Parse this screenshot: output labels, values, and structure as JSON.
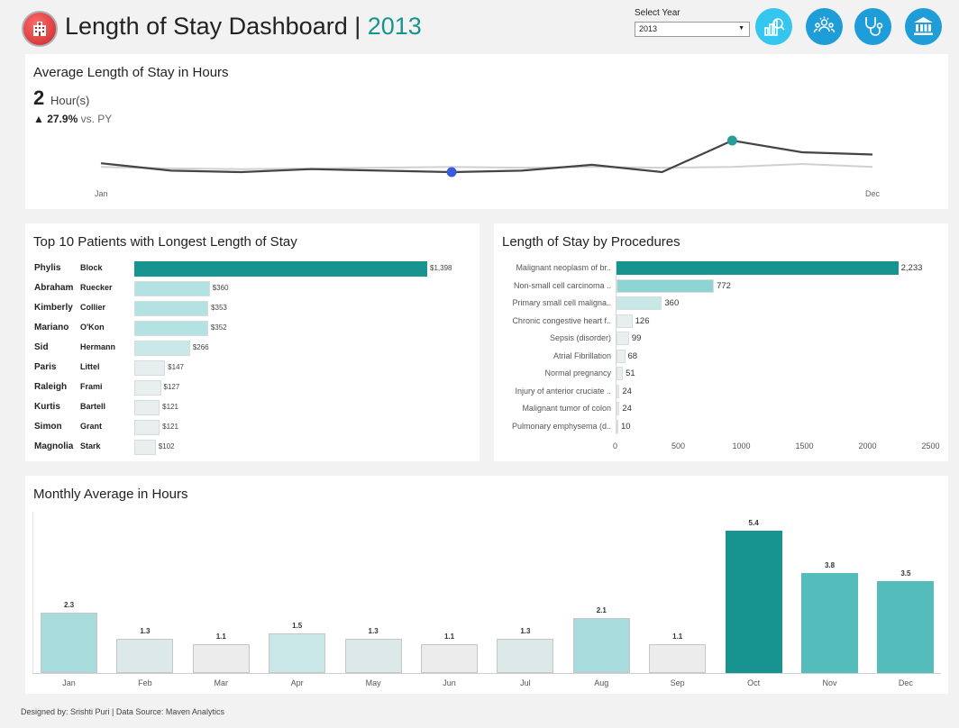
{
  "header": {
    "title": "Length of Stay Dashboard |",
    "year": "2013",
    "select_label": "Select Year",
    "select_value": "2013"
  },
  "nav_icons": [
    {
      "name": "analytics-icon",
      "color": "#35c6f0"
    },
    {
      "name": "patients-icon",
      "color": "#1e9dd8"
    },
    {
      "name": "stethoscope-icon",
      "color": "#1e9dd8"
    },
    {
      "name": "hospital-icon",
      "color": "#1e9dd8"
    }
  ],
  "kpi": {
    "title": "Average Length of Stay in Hours",
    "value": "2",
    "unit": "Hour(s)",
    "change": "▲ 27.9%",
    "change_suffix": "vs. PY",
    "axis_start": "Jan",
    "axis_end": "Dec"
  },
  "patients": {
    "title": "Top 10 Patients with Longest Length of Stay",
    "rows": [
      {
        "first": "Phylis",
        "last": "Block",
        "value": 1398,
        "label": "$1,398"
      },
      {
        "first": "Abraham",
        "last": "Ruecker",
        "value": 360,
        "label": "$360"
      },
      {
        "first": "Kimberly",
        "last": "Collier",
        "value": 353,
        "label": "$353"
      },
      {
        "first": "Mariano",
        "last": "O'Kon",
        "value": 352,
        "label": "$352"
      },
      {
        "first": "Sid",
        "last": "Hermann",
        "value": 266,
        "label": "$266"
      },
      {
        "first": "Paris",
        "last": "Littel",
        "value": 147,
        "label": "$147"
      },
      {
        "first": "Raleigh",
        "last": "Frami",
        "value": 127,
        "label": "$127"
      },
      {
        "first": "Kurtis",
        "last": "Bartell",
        "value": 121,
        "label": "$121"
      },
      {
        "first": "Simon",
        "last": "Grant",
        "value": 121,
        "label": "$121"
      },
      {
        "first": "Magnolia",
        "last": "Stark",
        "value": 102,
        "label": "$102"
      }
    ]
  },
  "procedures": {
    "title": "Length of Stay by Procedures",
    "rows": [
      {
        "label": "Malignant neoplasm of br..",
        "value": 2233,
        "text": "2,233"
      },
      {
        "label": "Non-small cell carcinoma ..",
        "value": 772,
        "text": "772"
      },
      {
        "label": "Primary small cell maligna..",
        "value": 360,
        "text": "360"
      },
      {
        "label": "Chronic congestive heart f..",
        "value": 126,
        "text": "126"
      },
      {
        "label": "Sepsis (disorder)",
        "value": 99,
        "text": "99"
      },
      {
        "label": "Atrial Fibrillation",
        "value": 68,
        "text": "68"
      },
      {
        "label": "Normal pregnancy",
        "value": 51,
        "text": "51"
      },
      {
        "label": "Injury of anterior cruciate ..",
        "value": 24,
        "text": "24"
      },
      {
        "label": "Malignant tumor of colon",
        "value": 24,
        "text": "24"
      },
      {
        "label": "Pulmonary emphysema (d..",
        "value": 10,
        "text": "10"
      }
    ],
    "ticks": [
      "0",
      "500",
      "1000",
      "1500",
      "2000",
      "2500"
    ],
    "xlim": [
      0,
      2500
    ]
  },
  "monthly": {
    "title": "Monthly Average in Hours"
  },
  "footer": "Designed by: Srishti Puri | Data Source: Maven Analytics",
  "chart_data": [
    {
      "type": "line",
      "title": "Average Length of Stay in Hours",
      "x": [
        "Jan",
        "Feb",
        "Mar",
        "Apr",
        "May",
        "Jun",
        "Jul",
        "Aug",
        "Sep",
        "Oct",
        "Nov",
        "Dec"
      ],
      "series": [
        {
          "values": [
            2.3,
            1.3,
            1.1,
            1.5,
            1.3,
            1.1,
            1.3,
            2.1,
            1.1,
            5.4,
            3.8,
            3.5
          ],
          "color": "#444444"
        },
        {
          "values": [
            1.8,
            1.6,
            1.5,
            1.6,
            1.7,
            1.8,
            1.7,
            1.8,
            1.7,
            1.8,
            2.2,
            1.8
          ],
          "color": "#d0d0d0"
        }
      ],
      "highlights": [
        {
          "x": "Jun",
          "color": "#3b5bdb"
        },
        {
          "x": "Oct",
          "color": "#2a9d9a"
        }
      ]
    },
    {
      "type": "bar",
      "title": "Top 10 Patients with Longest Length of Stay",
      "categories": [
        "Phylis Block",
        "Abraham Ruecker",
        "Kimberly Collier",
        "Mariano O'Kon",
        "Sid Hermann",
        "Paris Littel",
        "Raleigh Frami",
        "Kurtis Bartell",
        "Simon Grant",
        "Magnolia Stark"
      ],
      "values": [
        1398,
        360,
        353,
        352,
        266,
        147,
        127,
        121,
        121,
        102
      ]
    },
    {
      "type": "bar",
      "title": "Length of Stay by Procedures",
      "categories": [
        "Malignant neoplasm of br..",
        "Non-small cell carcinoma ..",
        "Primary small cell maligna..",
        "Chronic congestive heart f..",
        "Sepsis (disorder)",
        "Atrial Fibrillation",
        "Normal pregnancy",
        "Injury of anterior cruciate ..",
        "Malignant tumor of colon",
        "Pulmonary emphysema (d.."
      ],
      "values": [
        2233,
        772,
        360,
        126,
        99,
        68,
        51,
        24,
        24,
        10
      ],
      "xlim": [
        0,
        2500
      ]
    },
    {
      "type": "bar",
      "title": "Monthly Average in Hours",
      "categories": [
        "Jan",
        "Feb",
        "Mar",
        "Apr",
        "May",
        "Jun",
        "Jul",
        "Aug",
        "Sep",
        "Oct",
        "Nov",
        "Dec"
      ],
      "values": [
        2.3,
        1.3,
        1.1,
        1.5,
        1.3,
        1.1,
        1.3,
        2.1,
        1.1,
        5.4,
        3.8,
        3.5
      ],
      "labels": [
        "2.3",
        "1.3",
        "1.1",
        "1.5",
        "1.3",
        "1.1",
        "1.3",
        "2.1",
        "1.1",
        "5.4",
        "3.8",
        "3.5"
      ],
      "ylim": [
        0,
        5.4
      ]
    }
  ]
}
